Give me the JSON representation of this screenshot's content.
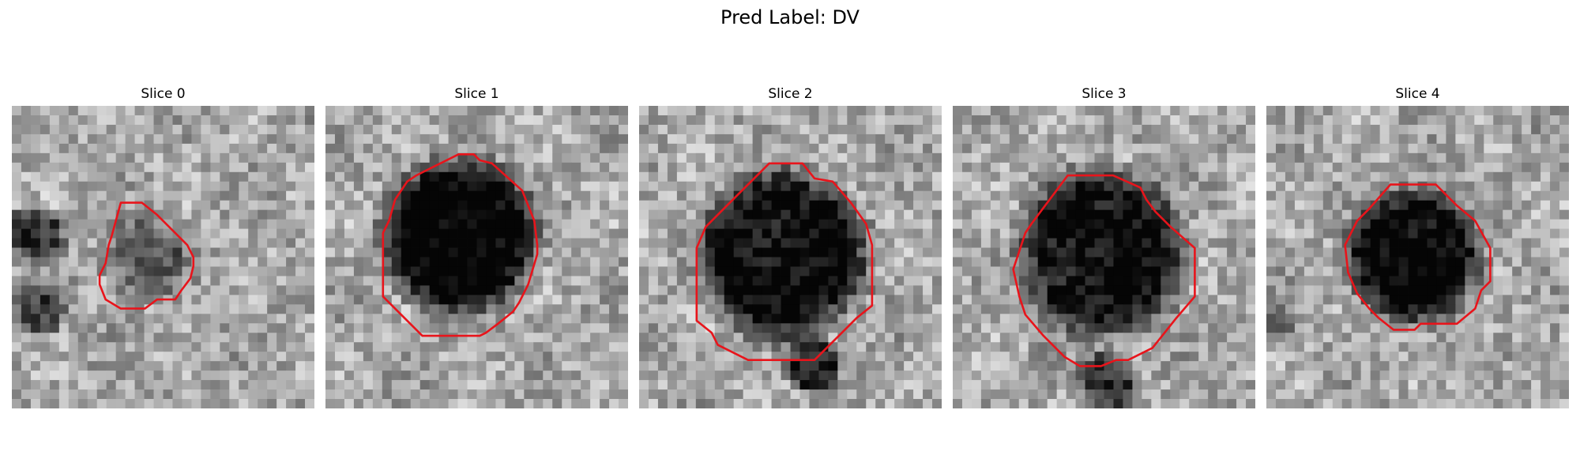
{
  "title": "Pred Label: DV",
  "contour_color": "#e8141b",
  "panels": [
    {
      "label": "Slice 0",
      "image": "grayscale-microscopy-patch",
      "feature": "faint dark blob with small red contour"
    },
    {
      "label": "Slice 1",
      "image": "grayscale-microscopy-patch",
      "feature": "large dark blob with red contour"
    },
    {
      "label": "Slice 2",
      "image": "grayscale-microscopy-patch",
      "feature": "large dark blob with red contour"
    },
    {
      "label": "Slice 3",
      "image": "grayscale-microscopy-patch",
      "feature": "large dark blob with red contour"
    },
    {
      "label": "Slice 4",
      "image": "grayscale-microscopy-patch",
      "feature": "dark blob with red contour"
    }
  ]
}
